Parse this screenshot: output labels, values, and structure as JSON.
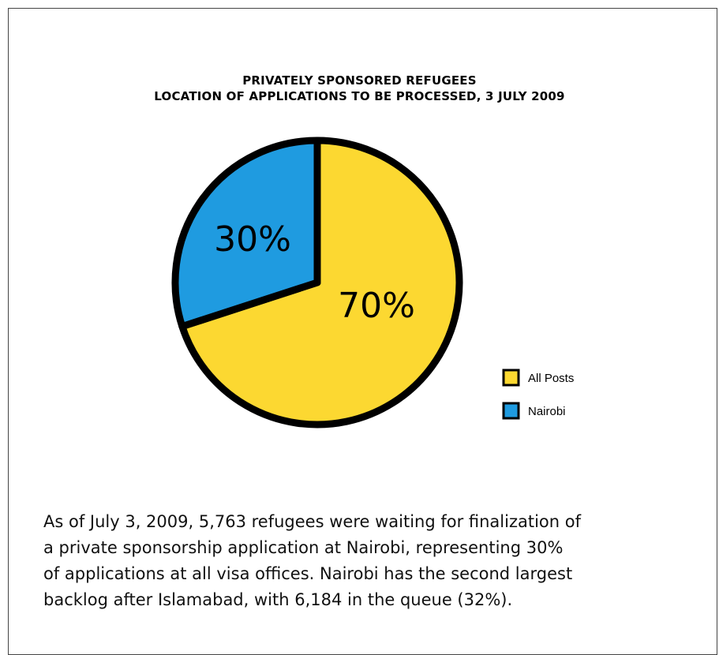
{
  "chart_data": {
    "type": "pie",
    "title_lines": [
      "PRIVATELY SPONSORED REFUGEES",
      "LOCATION OF APPLICATIONS TO BE PROCESSED, 3 JULY 2009"
    ],
    "slices": [
      {
        "label": "All Posts",
        "value": 70,
        "display": "70%",
        "color": "#FCD831"
      },
      {
        "label": "Nairobi",
        "value": 30,
        "display": "30%",
        "color": "#1F9BE0"
      }
    ],
    "legend_position": "right"
  },
  "caption_lines": [
    "As of July 3, 2009, 5,763 refugees were waiting for finalization of",
    "a private sponsorship application at Nairobi, representing 30%",
    "of applications at all visa offices.  Nairobi has the second largest",
    "backlog after Islamabad, with 6,184 in the queue (32%)."
  ]
}
